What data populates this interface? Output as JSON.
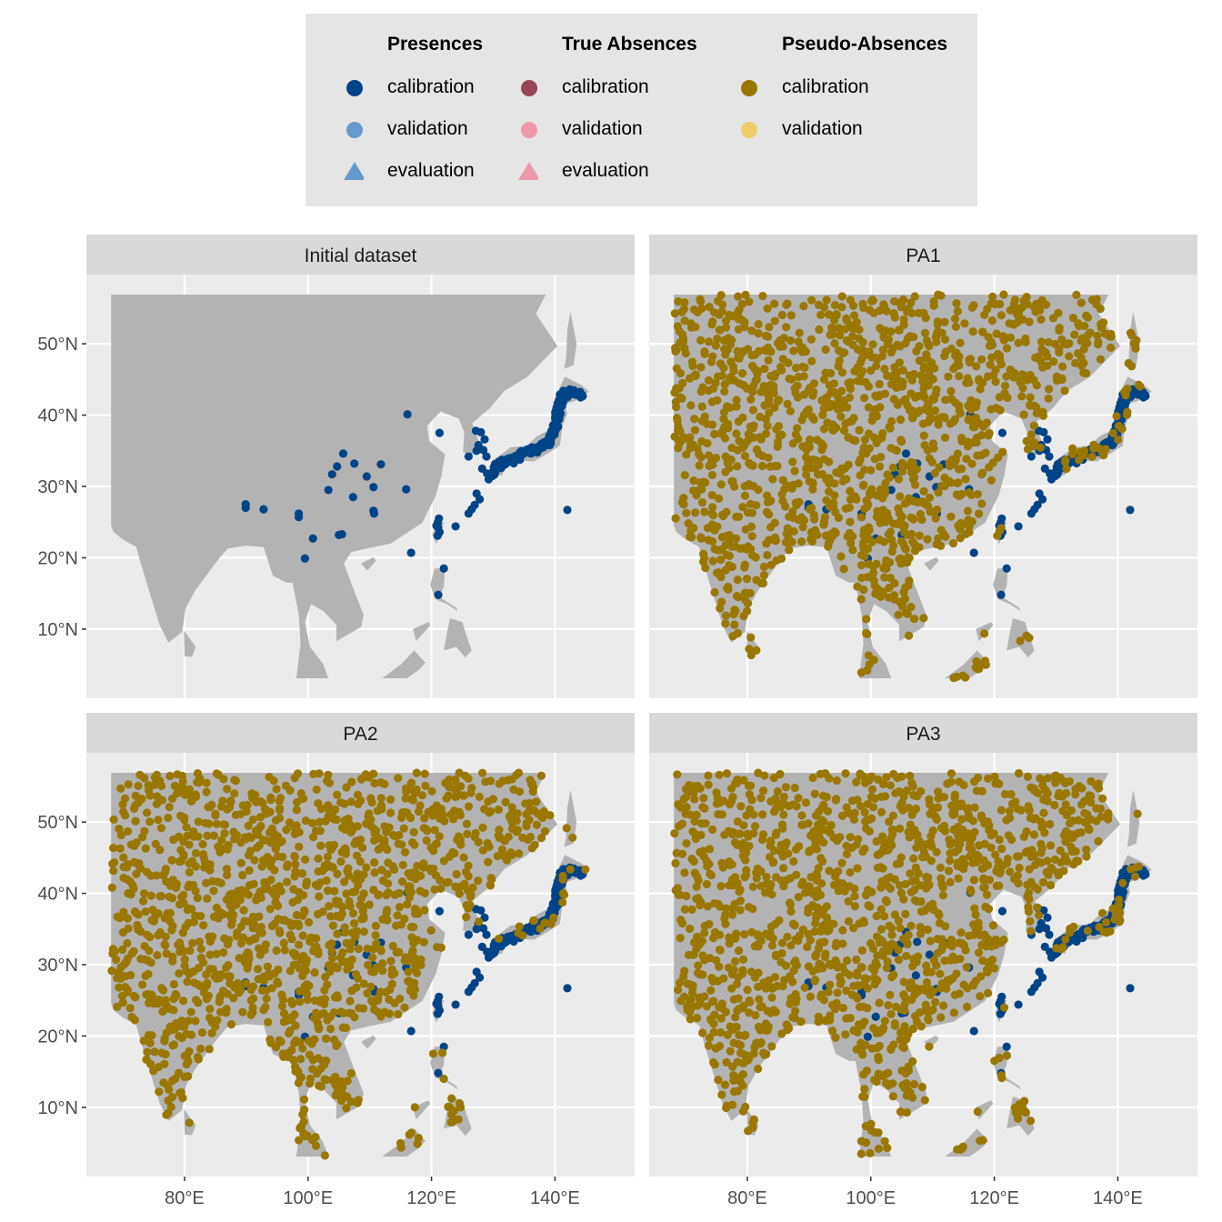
{
  "legend": {
    "groups": [
      {
        "title": "Presences",
        "items": [
          {
            "label": "calibration",
            "shape": "circle",
            "color": "#004488"
          },
          {
            "label": "validation",
            "shape": "circle",
            "color": "#6699CC"
          },
          {
            "label": "evaluation",
            "shape": "triangle",
            "color": "#6699CC"
          }
        ]
      },
      {
        "title": "True Absences",
        "items": [
          {
            "label": "calibration",
            "shape": "circle",
            "color": "#994455"
          },
          {
            "label": "validation",
            "shape": "circle",
            "color": "#EE99AA"
          },
          {
            "label": "evaluation",
            "shape": "triangle",
            "color": "#EE99AA"
          }
        ]
      },
      {
        "title": "Pseudo-Absences",
        "items": [
          {
            "label": "calibration",
            "shape": "circle",
            "color": "#997700"
          },
          {
            "label": "validation",
            "shape": "circle",
            "color": "#EECC66"
          }
        ]
      }
    ]
  },
  "chart_data": {
    "type": "scatter",
    "subtype": "faceted map",
    "facets": [
      "Initial dataset",
      "PA1",
      "PA2",
      "PA3"
    ],
    "x_ticks": [
      {
        "value": 80,
        "label": "80°E"
      },
      {
        "value": 100,
        "label": "100°E"
      },
      {
        "value": 120,
        "label": "120°E"
      },
      {
        "value": 140,
        "label": "140°E"
      }
    ],
    "y_ticks": [
      {
        "value": 10,
        "label": "10°N"
      },
      {
        "value": 20,
        "label": "20°N"
      },
      {
        "value": 30,
        "label": "30°N"
      },
      {
        "value": 40,
        "label": "40°N"
      },
      {
        "value": 50,
        "label": "50°N"
      }
    ],
    "xlim": [
      64.1,
      152.9
    ],
    "ylim": [
      0.3,
      59.7
    ],
    "grid": true,
    "legend_position": "top",
    "colors": {
      "land": "#B3B3B3",
      "panel": "#EBEBEB",
      "strip": "#D9D9D9",
      "presence_calibration": "#004488",
      "pseudo_absence_calibration": "#997700"
    },
    "presences_calibration": [
      [
        116.1,
        40.1
      ],
      [
        121.3,
        37.5
      ],
      [
        105.7,
        34.6
      ],
      [
        107.5,
        33.2
      ],
      [
        111.8,
        33.1
      ],
      [
        104.7,
        32.8
      ],
      [
        103.9,
        31.7
      ],
      [
        109.5,
        31.4
      ],
      [
        110.6,
        29.9
      ],
      [
        103.3,
        29.5
      ],
      [
        107.3,
        28.5
      ],
      [
        115.9,
        29.6
      ],
      [
        89.9,
        27.5
      ],
      [
        89.9,
        27.0
      ],
      [
        92.8,
        26.8
      ],
      [
        98.5,
        25.7
      ],
      [
        98.5,
        26.2
      ],
      [
        110.6,
        26.6
      ],
      [
        110.7,
        26.2
      ],
      [
        100.8,
        22.7
      ],
      [
        105.0,
        23.2
      ],
      [
        105.5,
        23.3
      ],
      [
        99.5,
        19.9
      ],
      [
        116.7,
        20.7
      ],
      [
        122.0,
        18.5
      ],
      [
        121.1,
        14.8
      ],
      [
        142.0,
        26.7
      ],
      [
        123.9,
        24.4
      ],
      [
        121.2,
        25.5
      ],
      [
        121.0,
        24.9
      ],
      [
        121.1,
        24.2
      ],
      [
        121.3,
        23.6
      ],
      [
        121.0,
        23.1
      ],
      [
        120.8,
        24.5
      ],
      [
        127.2,
        37.8
      ],
      [
        128.0,
        37.6
      ],
      [
        128.6,
        36.6
      ],
      [
        127.6,
        35.8
      ],
      [
        128.4,
        35.1
      ],
      [
        127.3,
        35.0
      ],
      [
        128.9,
        34.2
      ],
      [
        126.0,
        34.2
      ],
      [
        127.3,
        29.0
      ],
      [
        127.8,
        28.2
      ],
      [
        127.0,
        27.4
      ],
      [
        126.5,
        26.8
      ],
      [
        126.0,
        26.2
      ],
      [
        128.2,
        32.5
      ],
      [
        129.0,
        31.8
      ]
    ],
    "presence_arc": [
      [
        129.7,
        31.4
      ],
      [
        130.5,
        32.6
      ],
      [
        131.5,
        33.4
      ],
      [
        132.8,
        33.6
      ],
      [
        134.2,
        34.2
      ],
      [
        135.5,
        34.8
      ],
      [
        136.8,
        35.2
      ],
      [
        138.0,
        35.6
      ],
      [
        139.2,
        36.2
      ],
      [
        139.9,
        37.9
      ],
      [
        140.3,
        39.5
      ],
      [
        140.5,
        40.8
      ],
      [
        141.2,
        42.6
      ],
      [
        142.2,
        43.3
      ],
      [
        143.3,
        43.0
      ],
      [
        144.4,
        42.8
      ]
    ],
    "pseudo_absences_calibration": {
      "PA1": {
        "count": 1400
      },
      "PA2": {
        "count": 1400
      },
      "PA3": {
        "count": 1400
      }
    }
  }
}
